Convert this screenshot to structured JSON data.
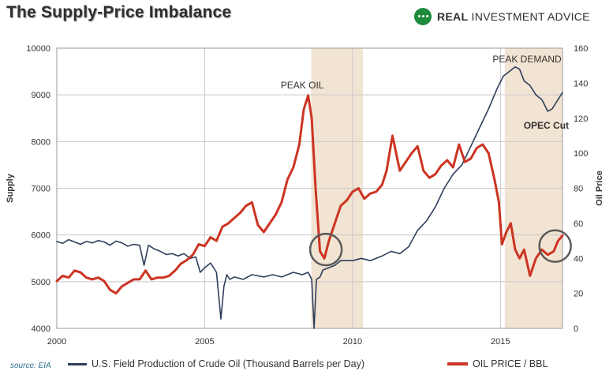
{
  "title": "The Supply-Price Imbalance",
  "brand": {
    "name_bold": "REAL",
    "name_rest": " INVESTMENT ADVICE"
  },
  "source": "source:  EIA",
  "colors": {
    "supply": "#2e3e5c",
    "price": "#cc3422",
    "shade": "#f2e4d3",
    "grid": "#c8c8c8",
    "circle": "#5a5a5a"
  },
  "chart_data": {
    "type": "line",
    "xlim": [
      2000,
      2017.1
    ],
    "x_ticks": [
      2000,
      2005,
      2010,
      2015
    ],
    "y_left": {
      "label": "Supply",
      "lim": [
        4000,
        10000
      ],
      "ticks": [
        4000,
        5000,
        6000,
        7000,
        8000,
        9000,
        10000
      ]
    },
    "y_right": {
      "label": "Oil Price",
      "lim": [
        0,
        160
      ],
      "ticks": [
        0,
        20,
        40,
        60,
        80,
        100,
        120,
        140,
        160
      ]
    },
    "shaded_periods": [
      [
        2008.6,
        2010.35
      ],
      [
        2015.15,
        2017.1
      ]
    ],
    "annotations": [
      {
        "text": "PEAK OIL",
        "x": 2008.3,
        "y_price": 137
      },
      {
        "text": "PEAK DEMAND",
        "x": 2015.9,
        "y_price": 152
      },
      {
        "text": "OPEC Cut",
        "x": 2016.55,
        "y_price": 114
      }
    ],
    "highlight_circles": [
      {
        "x": 2009.1,
        "y_price": 45
      },
      {
        "x": 2016.85,
        "y_price": 47
      }
    ],
    "series": [
      {
        "name": "U.S. Field Production of Crude Oil (Thousand Barrels per Day)",
        "axis": "left",
        "x": [
          2000,
          2000.2,
          2000.4,
          2000.6,
          2000.8,
          2001,
          2001.2,
          2001.4,
          2001.6,
          2001.8,
          2002,
          2002.2,
          2002.4,
          2002.6,
          2002.8,
          2002.95,
          2003.1,
          2003.3,
          2003.5,
          2003.7,
          2003.9,
          2004.1,
          2004.3,
          2004.5,
          2004.7,
          2004.85,
          2005,
          2005.2,
          2005.4,
          2005.55,
          2005.65,
          2005.75,
          2005.85,
          2006,
          2006.3,
          2006.6,
          2007,
          2007.3,
          2007.6,
          2008,
          2008.3,
          2008.5,
          2008.62,
          2008.7,
          2008.78,
          2008.9,
          2009,
          2009.2,
          2009.4,
          2009.6,
          2009.8,
          2010,
          2010.3,
          2010.6,
          2011,
          2011.3,
          2011.6,
          2011.9,
          2012.2,
          2012.5,
          2012.8,
          2013.1,
          2013.4,
          2013.7,
          2014,
          2014.3,
          2014.6,
          2014.9,
          2015.1,
          2015.3,
          2015.5,
          2015.65,
          2015.8,
          2016,
          2016.2,
          2016.4,
          2016.6,
          2016.75,
          2016.9,
          2017.1
        ],
        "values": [
          5860,
          5820,
          5900,
          5850,
          5800,
          5860,
          5830,
          5880,
          5850,
          5780,
          5870,
          5830,
          5760,
          5800,
          5780,
          5350,
          5780,
          5700,
          5650,
          5580,
          5600,
          5550,
          5600,
          5500,
          5530,
          5200,
          5300,
          5400,
          5200,
          4200,
          4900,
          5150,
          5050,
          5100,
          5050,
          5150,
          5100,
          5150,
          5100,
          5200,
          5150,
          5200,
          5050,
          4000,
          5050,
          5100,
          5250,
          5300,
          5350,
          5450,
          5450,
          5450,
          5500,
          5450,
          5550,
          5650,
          5600,
          5750,
          6100,
          6300,
          6600,
          7000,
          7300,
          7500,
          7900,
          8300,
          8700,
          9150,
          9400,
          9500,
          9600,
          9550,
          9300,
          9200,
          9000,
          8900,
          8650,
          8700,
          8850,
          9050
        ]
      },
      {
        "name": "OIL PRICE / BBL",
        "axis": "right",
        "x": [
          2000,
          2000.2,
          2000.4,
          2000.6,
          2000.8,
          2001,
          2001.2,
          2001.4,
          2001.6,
          2001.8,
          2002,
          2002.2,
          2002.4,
          2002.6,
          2002.8,
          2003,
          2003.2,
          2003.4,
          2003.6,
          2003.8,
          2004,
          2004.2,
          2004.4,
          2004.6,
          2004.8,
          2005,
          2005.2,
          2005.4,
          2005.6,
          2005.8,
          2006,
          2006.2,
          2006.4,
          2006.6,
          2006.8,
          2007,
          2007.2,
          2007.4,
          2007.6,
          2007.8,
          2008,
          2008.2,
          2008.35,
          2008.5,
          2008.62,
          2008.75,
          2008.9,
          2009.05,
          2009.2,
          2009.4,
          2009.6,
          2009.8,
          2010,
          2010.2,
          2010.4,
          2010.6,
          2010.8,
          2011,
          2011.15,
          2011.35,
          2011.6,
          2011.8,
          2012,
          2012.2,
          2012.4,
          2012.6,
          2012.8,
          2013,
          2013.2,
          2013.4,
          2013.6,
          2013.8,
          2014,
          2014.2,
          2014.4,
          2014.6,
          2014.8,
          2014.95,
          2015.05,
          2015.2,
          2015.35,
          2015.5,
          2015.65,
          2015.8,
          2016,
          2016.2,
          2016.4,
          2016.6,
          2016.8,
          2016.95,
          2017.1
        ],
        "values": [
          27,
          30,
          29,
          33,
          32,
          29,
          28,
          29,
          27,
          22,
          20,
          24,
          26,
          28,
          28,
          33,
          28,
          29,
          29,
          30,
          33,
          37,
          39,
          42,
          48,
          47,
          52,
          50,
          58,
          60,
          63,
          66,
          70,
          72,
          59,
          55,
          60,
          65,
          72,
          85,
          92,
          105,
          125,
          133,
          120,
          80,
          44,
          40,
          50,
          60,
          70,
          73,
          78,
          80,
          74,
          77,
          78,
          82,
          90,
          110,
          90,
          95,
          100,
          104,
          90,
          86,
          88,
          93,
          96,
          92,
          105,
          95,
          97,
          103,
          105,
          100,
          85,
          72,
          48,
          55,
          60,
          45,
          40,
          45,
          30,
          40,
          45,
          42,
          44,
          50,
          53
        ]
      }
    ]
  }
}
